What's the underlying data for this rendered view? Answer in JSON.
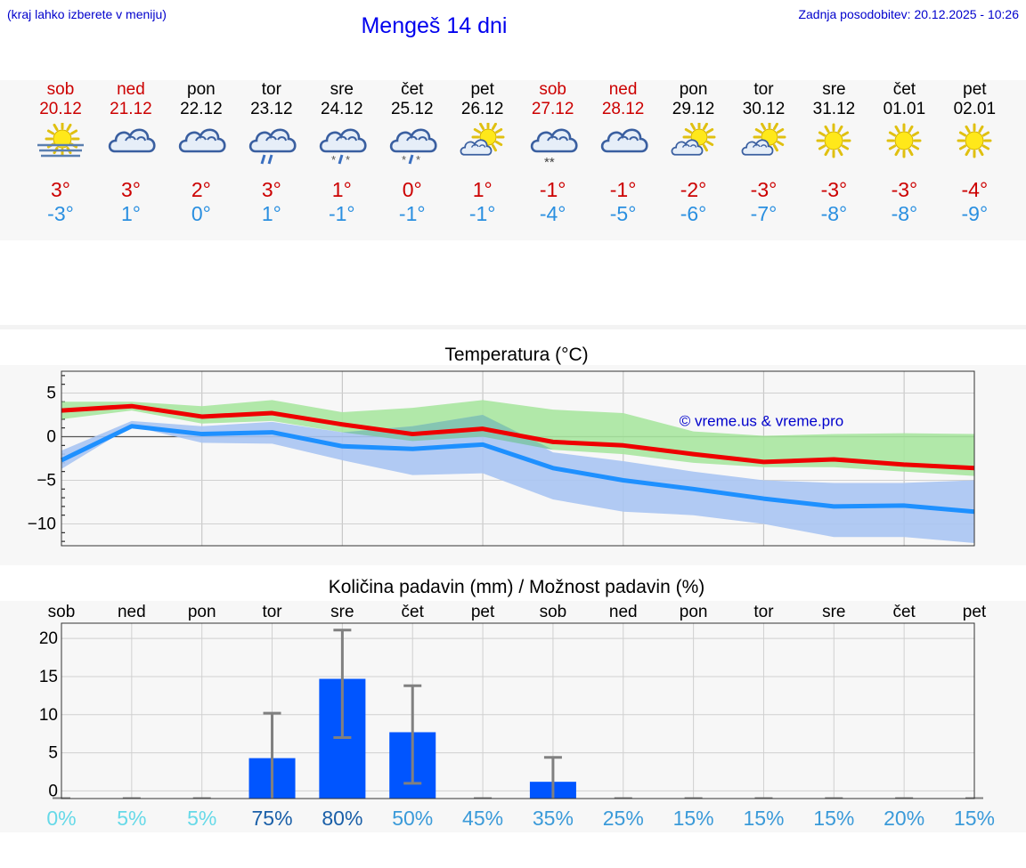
{
  "header": {
    "note": "(kraj lahko izberete v meniju)",
    "title": "Mengeš 14 dni",
    "updated": "Zadnja posodobitev: 20.12.2025 - 10:26"
  },
  "days": [
    {
      "name": "sob",
      "date": "20.12",
      "weekend": true,
      "icon": "fog-sun-icon",
      "tmax": "3°",
      "tmin": "-3°"
    },
    {
      "name": "ned",
      "date": "21.12",
      "weekend": true,
      "icon": "cloudy-icon",
      "tmax": "3°",
      "tmin": "1°"
    },
    {
      "name": "pon",
      "date": "22.12",
      "weekend": false,
      "icon": "cloudy-icon",
      "tmax": "2°",
      "tmin": "0°"
    },
    {
      "name": "tor",
      "date": "23.12",
      "weekend": false,
      "icon": "cloud-rain-icon",
      "tmax": "3°",
      "tmin": "1°"
    },
    {
      "name": "sre",
      "date": "24.12",
      "weekend": false,
      "icon": "cloud-sleet-icon",
      "tmax": "1°",
      "tmin": "-1°"
    },
    {
      "name": "čet",
      "date": "25.12",
      "weekend": false,
      "icon": "cloud-sleet-icon",
      "tmax": "0°",
      "tmin": "-1°"
    },
    {
      "name": "pet",
      "date": "26.12",
      "weekend": false,
      "icon": "partly-cloudy-icon",
      "tmax": "1°",
      "tmin": "-1°"
    },
    {
      "name": "sob",
      "date": "27.12",
      "weekend": true,
      "icon": "cloud-snow-icon",
      "tmax": "-1°",
      "tmin": "-4°"
    },
    {
      "name": "ned",
      "date": "28.12",
      "weekend": true,
      "icon": "cloudy-icon",
      "tmax": "-1°",
      "tmin": "-5°"
    },
    {
      "name": "pon",
      "date": "29.12",
      "weekend": false,
      "icon": "partly-cloudy-icon",
      "tmax": "-2°",
      "tmin": "-6°"
    },
    {
      "name": "tor",
      "date": "30.12",
      "weekend": false,
      "icon": "partly-cloudy-icon",
      "tmax": "-3°",
      "tmin": "-7°"
    },
    {
      "name": "sre",
      "date": "31.12",
      "weekend": false,
      "icon": "sun-icon",
      "tmax": "-3°",
      "tmin": "-8°"
    },
    {
      "name": "čet",
      "date": "01.01",
      "weekend": false,
      "icon": "sun-icon",
      "tmax": "-3°",
      "tmin": "-8°"
    },
    {
      "name": "pet",
      "date": "02.01",
      "weekend": false,
      "icon": "sun-icon",
      "tmax": "-4°",
      "tmin": "-9°"
    }
  ],
  "colors": {
    "tmax_line": "#ee0000",
    "tmin_line": "#1e90ff",
    "band_green": "#a8e6a0",
    "band_blue": "#a9c4f2",
    "band_overlap": "#7fc4a8",
    "bar": "#0055ff",
    "whisker": "#808080"
  },
  "chart_data": [
    {
      "type": "line",
      "title": "Temperatura (°C)",
      "watermark": "© vreme.us & vreme.pro",
      "x": [
        0,
        1,
        2,
        3,
        4,
        5,
        6,
        7,
        8,
        9,
        10,
        11,
        12,
        13
      ],
      "ylim": [
        -12.5,
        7.5
      ],
      "yticks": [
        5,
        0,
        -5,
        -10
      ],
      "ytick_labels": [
        "5",
        "0",
        "−5",
        "−10"
      ],
      "series": [
        {
          "name": "max",
          "values": [
            3,
            3.5,
            2.3,
            2.7,
            1.4,
            0.3,
            0.9,
            -0.6,
            -1,
            -2,
            -2.9,
            -2.6,
            -3.2,
            -3.6
          ],
          "band_low": [
            2,
            3,
            1.5,
            1.8,
            0.5,
            -0.5,
            0,
            -1.5,
            -2,
            -3,
            -3.5,
            -3.5,
            -4,
            -4.5
          ],
          "band_high": [
            4,
            4,
            3.5,
            4.2,
            2.8,
            3.3,
            4.2,
            3.1,
            2.7,
            0.6,
            0.1,
            0.3,
            0.4,
            0.3
          ]
        },
        {
          "name": "min",
          "values": [
            -2.7,
            1.2,
            0.3,
            0.5,
            -1.1,
            -1.4,
            -0.9,
            -3.6,
            -5,
            -6,
            -7.1,
            -8,
            -7.9,
            -8.6
          ],
          "band_low": [
            -3.7,
            1.2,
            -0.7,
            -0.8,
            -2.7,
            -4.4,
            -4.2,
            -7.2,
            -8.6,
            -9,
            -10,
            -11.5,
            -11.5,
            -12.2
          ],
          "band_high": [
            -1.6,
            1.8,
            1.2,
            1.7,
            0.5,
            1.2,
            2.5,
            -1.8,
            -2.8,
            -4,
            -5,
            -5.3,
            -5.3,
            -5
          ]
        }
      ]
    },
    {
      "type": "bar",
      "title": "Količina padavin (mm) / Možnost padavin (%)",
      "categories": [
        "sob",
        "ned",
        "pon",
        "tor",
        "sre",
        "čet",
        "pet",
        "sob",
        "ned",
        "pon",
        "tor",
        "sre",
        "čet",
        "pet"
      ],
      "values": [
        0,
        0,
        0,
        4.3,
        14.7,
        7.7,
        0,
        1.2,
        0,
        0,
        0,
        0,
        0,
        0
      ],
      "err_low": [
        0,
        0,
        0,
        0,
        7,
        1,
        0,
        0,
        0,
        0,
        0,
        0,
        0,
        0
      ],
      "err_high": [
        0,
        0,
        0,
        10.2,
        21.1,
        13.8,
        0,
        4.4,
        0,
        0,
        0,
        0,
        0,
        0
      ],
      "ylim": [
        -1,
        22
      ],
      "yticks": [
        20,
        15,
        10,
        5,
        0
      ],
      "probabilities": [
        "0%",
        "5%",
        "5%",
        "75%",
        "80%",
        "50%",
        "45%",
        "35%",
        "25%",
        "15%",
        "15%",
        "15%",
        "20%",
        "15%"
      ],
      "prob_colors": [
        "#66d9e8",
        "#66d9e8",
        "#66d9e8",
        "#1a5fa8",
        "#1a5fa8",
        "#3a9ad9",
        "#3a9ad9",
        "#3a9ad9",
        "#3a9ad9",
        "#3a9ad9",
        "#3a9ad9",
        "#3a9ad9",
        "#3a9ad9",
        "#3a9ad9"
      ]
    }
  ]
}
